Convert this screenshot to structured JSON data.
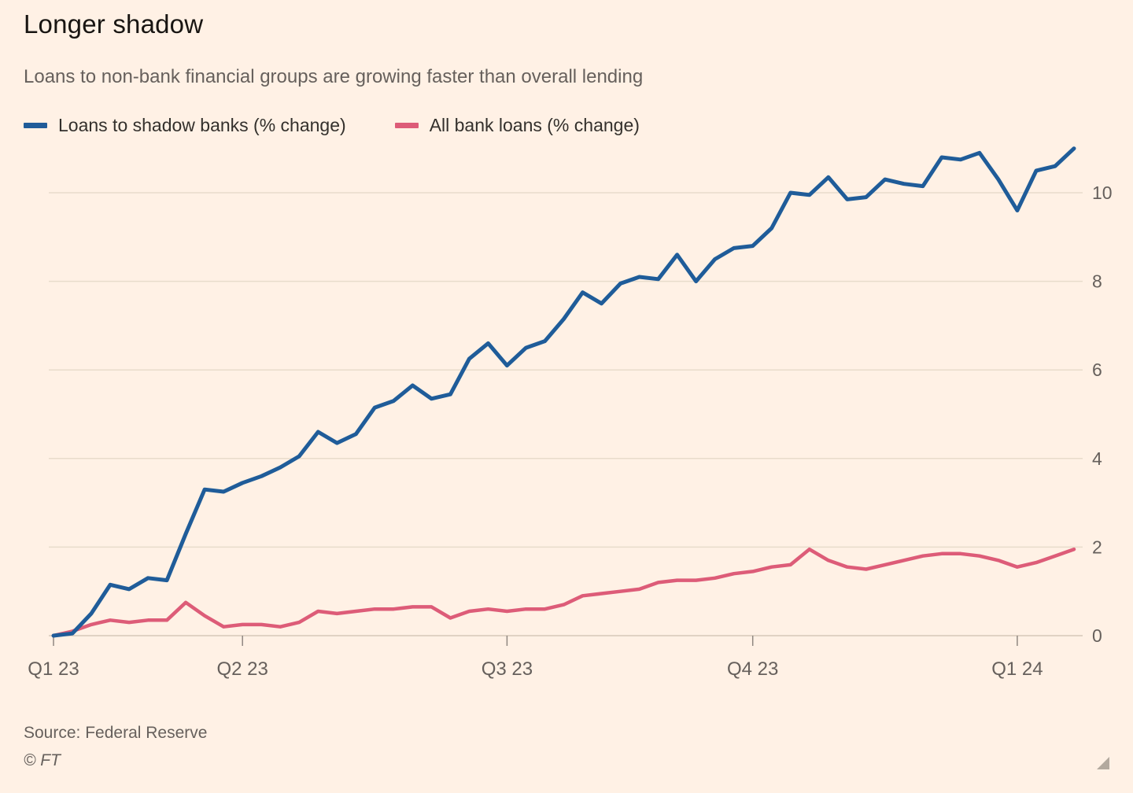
{
  "header": {
    "title": "Longer shadow",
    "subtitle": "Loans to non-bank financial groups are growing faster than overall lending"
  },
  "legend": [
    {
      "label": "Loans to shadow banks (% change)",
      "color": "#1F5C99"
    },
    {
      "label": "All bank loans (% change)",
      "color": "#DD5C78"
    }
  ],
  "chart_data": {
    "type": "line",
    "title": "Longer shadow",
    "subtitle": "Loans to non-bank financial groups are growing faster than overall lending",
    "x_unit": "weekly observations, Q1 2023 to Q1 2024",
    "x_tick_labels": [
      "Q1 23",
      "Q2 23",
      "Q3 23",
      "Q4 23",
      "Q1 24"
    ],
    "x_tick_indices": [
      0,
      10,
      24,
      37,
      51
    ],
    "y_ticks": [
      0,
      2,
      4,
      6,
      8,
      10
    ],
    "ylim": [
      0,
      11.2
    ],
    "y_axis_side": "right",
    "grid": "horizontal",
    "legend_position": "top-left",
    "series": [
      {
        "name": "Loans to shadow banks (% change)",
        "color": "#1F5C99",
        "values": [
          0.0,
          0.05,
          0.5,
          1.15,
          1.05,
          1.3,
          1.25,
          2.3,
          3.3,
          3.25,
          3.45,
          3.6,
          3.8,
          4.05,
          4.6,
          4.35,
          4.55,
          5.15,
          5.3,
          5.65,
          5.35,
          5.45,
          6.25,
          6.6,
          6.1,
          6.5,
          6.65,
          7.15,
          7.75,
          7.5,
          7.95,
          8.1,
          8.05,
          8.6,
          8.0,
          8.5,
          8.75,
          8.8,
          9.2,
          10.0,
          9.95,
          10.35,
          9.85,
          9.9,
          10.3,
          10.2,
          10.15,
          10.8,
          10.75,
          10.9,
          10.3,
          9.6,
          10.5,
          10.6,
          11.0
        ]
      },
      {
        "name": "All bank loans (% change)",
        "color": "#DD5C78",
        "values": [
          0.0,
          0.1,
          0.25,
          0.35,
          0.3,
          0.35,
          0.35,
          0.75,
          0.45,
          0.2,
          0.25,
          0.25,
          0.2,
          0.3,
          0.55,
          0.5,
          0.55,
          0.6,
          0.6,
          0.65,
          0.65,
          0.4,
          0.55,
          0.6,
          0.55,
          0.6,
          0.6,
          0.7,
          0.9,
          0.95,
          1.0,
          1.05,
          1.2,
          1.25,
          1.25,
          1.3,
          1.4,
          1.45,
          1.55,
          1.6,
          1.95,
          1.7,
          1.55,
          1.5,
          1.6,
          1.7,
          1.8,
          1.85,
          1.85,
          1.8,
          1.7,
          1.55,
          1.65,
          1.8,
          1.95
        ]
      }
    ]
  },
  "footer": {
    "source": "Source: Federal Reserve",
    "copyright": "© FT"
  },
  "colors": {
    "background": "#FFF1E5",
    "grid": "#E8DCCB",
    "baseline": "#D5C8B9",
    "axis_tick": "#8F8780",
    "axis_text": "#66605C",
    "title": "#181512",
    "subtitle": "#66605C"
  }
}
